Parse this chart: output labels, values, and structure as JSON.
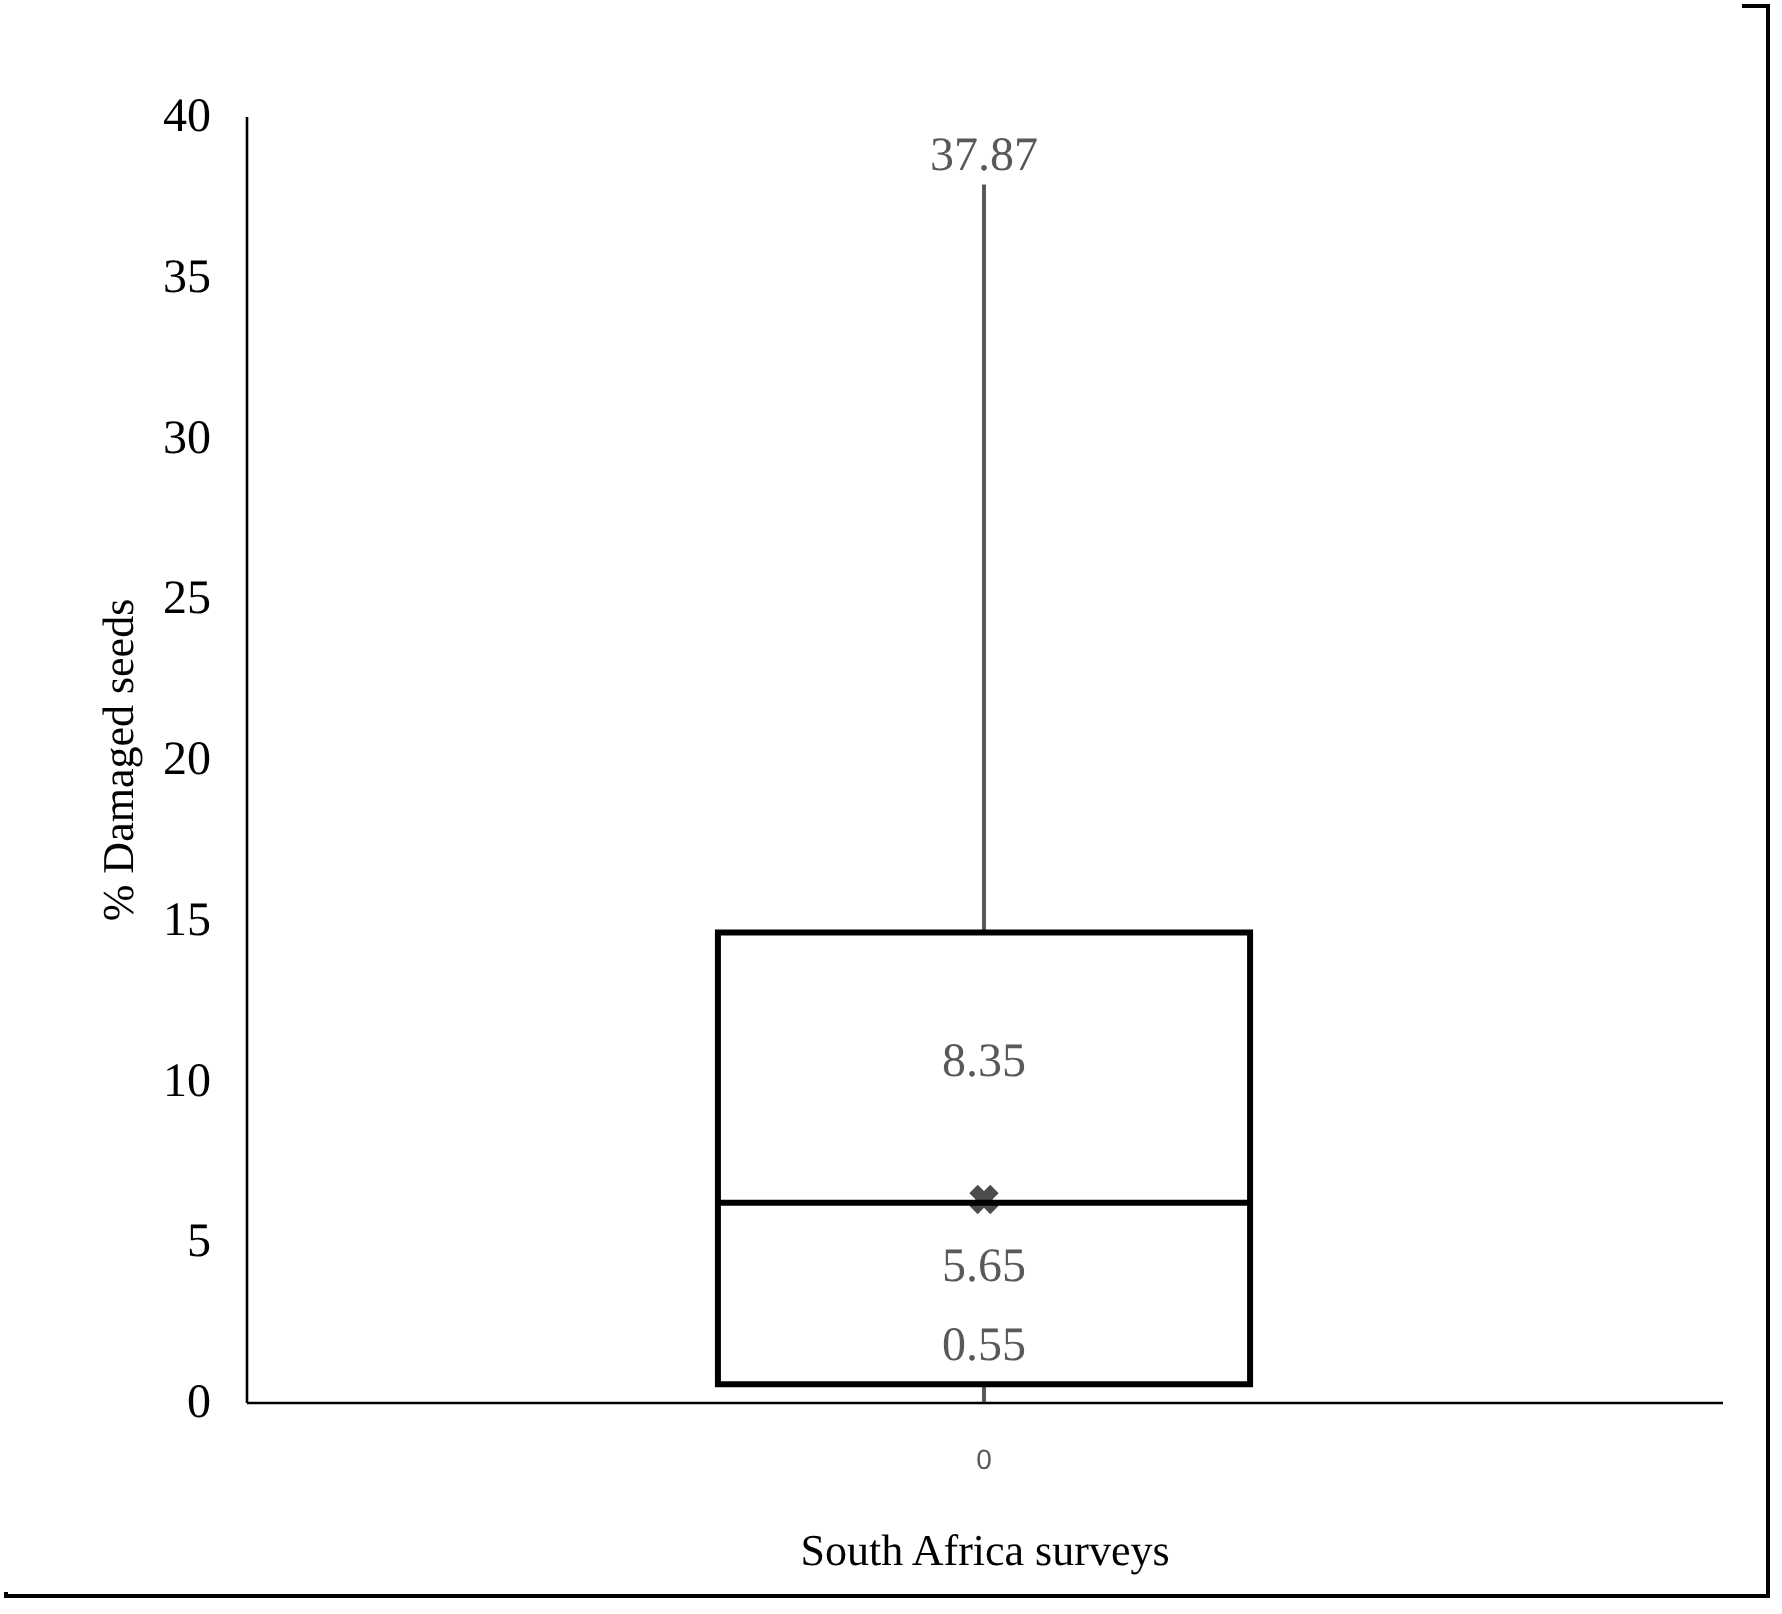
{
  "chart_data": {
    "type": "box",
    "xlabel": "South Africa surveys",
    "ylabel": "% Damaged seeds",
    "categories": [
      "0"
    ],
    "boxes": [
      {
        "low": 0,
        "q1": 0.55,
        "median": 6.2,
        "q3": 14.6,
        "high": 37.87,
        "mean": 6.3
      }
    ],
    "ylim": [
      0,
      40
    ],
    "yticks": [
      0,
      5,
      10,
      15,
      20,
      25,
      30,
      35,
      40
    ],
    "grid": false,
    "annotations": [
      "37.87",
      "8.35",
      "5.65",
      "0.55"
    ]
  }
}
